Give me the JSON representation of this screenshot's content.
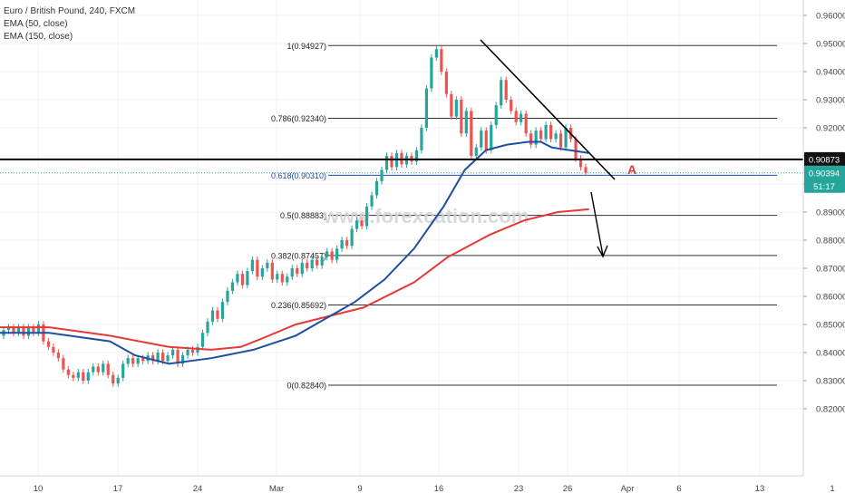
{
  "legend": {
    "symbol_line": "Euro / British Pound, 240, FXCM",
    "ema50_label": "EMA (50, close)",
    "ema150_label": "EMA (150, close)"
  },
  "watermark": "www.forexcation.com",
  "colors": {
    "up": "#26a69a",
    "down": "#ef5350",
    "ema50": "#1e4fa0",
    "ema150": "#e53935",
    "level_line": "#000000",
    "current_price": "#26a69a",
    "annotation_a": "#e53935"
  },
  "chart_data": {
    "type": "candlestick",
    "symbol": "EURGBP",
    "timeframe": "240",
    "y_axis": {
      "ticks": [
        "0.96000",
        "0.95000",
        "0.94000",
        "0.93000",
        "0.92000",
        "0.91000",
        "0.90000",
        "0.89000",
        "0.88000",
        "0.87000",
        "0.86000",
        "0.85000",
        "0.84000",
        "0.83000",
        "0.82000"
      ],
      "range": [
        0.8175,
        0.9635
      ]
    },
    "x_axis": {
      "ticks": [
        "10",
        "17",
        "24",
        "Mar",
        "9",
        "16",
        "23",
        "26",
        "Apr",
        "6",
        "13",
        "1"
      ]
    },
    "fib_levels": [
      {
        "ratio": "1",
        "price": "0.94927",
        "label": "1(0.94927)"
      },
      {
        "ratio": "0.786",
        "price": "0.92340",
        "label": "0.786(0.92340)"
      },
      {
        "ratio": "0.618",
        "price": "0.90310",
        "label": "0.618(0.90310)"
      },
      {
        "ratio": "0.5",
        "price": "0.88883",
        "label": "0.5(0.88883)"
      },
      {
        "ratio": "0.382",
        "price": "0.87457",
        "label": "0.382(0.87457)"
      },
      {
        "ratio": "0.236",
        "price": "0.85692",
        "label": "0.236(0.85692)"
      },
      {
        "ratio": "0",
        "price": "0.82840",
        "label": "0(0.82840)"
      }
    ],
    "horizontal_level": {
      "price": "0.90873",
      "label": "0.90873"
    },
    "current_price": {
      "price": "0.90394",
      "label": "0.90394",
      "countdown": "51:17"
    },
    "annotation_label": "A",
    "ema50": [
      [
        0.847,
        0.847
      ],
      [
        0.058,
        0.847
      ],
      [
        0.13,
        0.844
      ],
      [
        0.16,
        0.839
      ],
      [
        0.2,
        0.836
      ],
      [
        0.25,
        0.838
      ],
      [
        0.3,
        0.841
      ],
      [
        0.35,
        0.846
      ],
      [
        0.385,
        0.852
      ],
      [
        0.42,
        0.858
      ],
      [
        0.455,
        0.866
      ],
      [
        0.49,
        0.877
      ],
      [
        0.525,
        0.892
      ],
      [
        0.55,
        0.905
      ],
      [
        0.575,
        0.912
      ],
      [
        0.6,
        0.914
      ],
      [
        0.625,
        0.915
      ],
      [
        0.64,
        0.915
      ],
      [
        0.653,
        0.913
      ],
      [
        0.697,
        0.911
      ]
    ],
    "ema150": [
      [
        0.849,
        0.849
      ],
      [
        0.058,
        0.849
      ],
      [
        0.13,
        0.846
      ],
      [
        0.2,
        0.842
      ],
      [
        0.25,
        0.841
      ],
      [
        0.285,
        0.842
      ],
      [
        0.31,
        0.845
      ],
      [
        0.35,
        0.85
      ],
      [
        0.43,
        0.856
      ],
      [
        0.49,
        0.865
      ],
      [
        0.53,
        0.874
      ],
      [
        0.58,
        0.882
      ],
      [
        0.62,
        0.887
      ],
      [
        0.66,
        0.89
      ],
      [
        0.697,
        0.891
      ]
    ],
    "candles": [
      [
        0.846,
        0.848
      ],
      [
        0.848,
        0.849
      ],
      [
        0.849,
        0.847
      ],
      [
        0.847,
        0.849
      ],
      [
        0.849,
        0.846
      ],
      [
        0.846,
        0.849
      ],
      [
        0.849,
        0.847
      ],
      [
        0.847,
        0.85
      ],
      [
        0.85,
        0.844
      ],
      [
        0.844,
        0.842
      ],
      [
        0.842,
        0.84
      ],
      [
        0.84,
        0.838
      ],
      [
        0.838,
        0.834
      ],
      [
        0.834,
        0.832
      ],
      [
        0.832,
        0.831
      ],
      [
        0.831,
        0.833
      ],
      [
        0.833,
        0.83
      ],
      [
        0.83,
        0.833
      ],
      [
        0.833,
        0.835
      ],
      [
        0.835,
        0.833
      ],
      [
        0.833,
        0.836
      ],
      [
        0.836,
        0.832
      ],
      [
        0.832,
        0.829
      ],
      [
        0.829,
        0.831
      ],
      [
        0.831,
        0.836
      ],
      [
        0.836,
        0.838
      ],
      [
        0.838,
        0.836
      ],
      [
        0.836,
        0.838
      ],
      [
        0.838,
        0.837
      ],
      [
        0.837,
        0.839
      ],
      [
        0.839,
        0.837
      ],
      [
        0.837,
        0.84
      ],
      [
        0.84,
        0.837
      ],
      [
        0.837,
        0.839
      ],
      [
        0.839,
        0.841
      ],
      [
        0.841,
        0.836
      ],
      [
        0.836,
        0.839
      ],
      [
        0.839,
        0.841
      ],
      [
        0.841,
        0.84
      ],
      [
        0.84,
        0.842
      ],
      [
        0.842,
        0.847
      ],
      [
        0.847,
        0.851
      ],
      [
        0.851,
        0.855
      ],
      [
        0.855,
        0.852
      ],
      [
        0.852,
        0.858
      ],
      [
        0.858,
        0.862
      ],
      [
        0.862,
        0.865
      ],
      [
        0.865,
        0.868
      ],
      [
        0.868,
        0.864
      ],
      [
        0.864,
        0.869
      ],
      [
        0.869,
        0.873
      ],
      [
        0.873,
        0.867
      ],
      [
        0.867,
        0.87
      ],
      [
        0.87,
        0.872
      ],
      [
        0.872,
        0.866
      ],
      [
        0.866,
        0.868
      ],
      [
        0.868,
        0.865
      ],
      [
        0.865,
        0.867
      ],
      [
        0.867,
        0.87
      ],
      [
        0.87,
        0.868
      ],
      [
        0.868,
        0.872
      ],
      [
        0.872,
        0.87
      ],
      [
        0.87,
        0.873
      ],
      [
        0.873,
        0.871
      ],
      [
        0.871,
        0.874
      ],
      [
        0.874,
        0.876
      ],
      [
        0.876,
        0.873
      ],
      [
        0.873,
        0.877
      ],
      [
        0.877,
        0.88
      ],
      [
        0.88,
        0.878
      ],
      [
        0.878,
        0.884
      ],
      [
        0.884,
        0.887
      ],
      [
        0.887,
        0.885
      ],
      [
        0.885,
        0.892
      ],
      [
        0.892,
        0.896
      ],
      [
        0.896,
        0.901
      ],
      [
        0.901,
        0.905
      ],
      [
        0.905,
        0.91
      ],
      [
        0.91,
        0.906
      ],
      [
        0.906,
        0.911
      ],
      [
        0.911,
        0.907
      ],
      [
        0.907,
        0.91
      ],
      [
        0.91,
        0.908
      ],
      [
        0.908,
        0.912
      ],
      [
        0.912,
        0.92
      ],
      [
        0.92,
        0.934
      ],
      [
        0.934,
        0.945
      ],
      [
        0.945,
        0.948
      ],
      [
        0.948,
        0.94
      ],
      [
        0.94,
        0.932
      ],
      [
        0.932,
        0.924
      ],
      [
        0.924,
        0.93
      ],
      [
        0.93,
        0.918
      ],
      [
        0.918,
        0.926
      ],
      [
        0.926,
        0.91
      ],
      [
        0.91,
        0.913
      ],
      [
        0.913,
        0.919
      ],
      [
        0.919,
        0.912
      ],
      [
        0.912,
        0.921
      ],
      [
        0.921,
        0.928
      ],
      [
        0.928,
        0.937
      ],
      [
        0.937,
        0.93
      ],
      [
        0.93,
        0.926
      ],
      [
        0.926,
        0.922
      ],
      [
        0.922,
        0.925
      ],
      [
        0.925,
        0.918
      ],
      [
        0.918,
        0.914
      ],
      [
        0.914,
        0.919
      ],
      [
        0.919,
        0.916
      ],
      [
        0.916,
        0.921
      ],
      [
        0.921,
        0.916
      ],
      [
        0.916,
        0.918
      ],
      [
        0.918,
        0.913
      ],
      [
        0.913,
        0.92
      ],
      [
        0.92,
        0.916
      ],
      [
        0.916,
        0.909
      ],
      [
        0.909,
        0.906
      ],
      [
        0.906,
        0.904
      ]
    ]
  }
}
